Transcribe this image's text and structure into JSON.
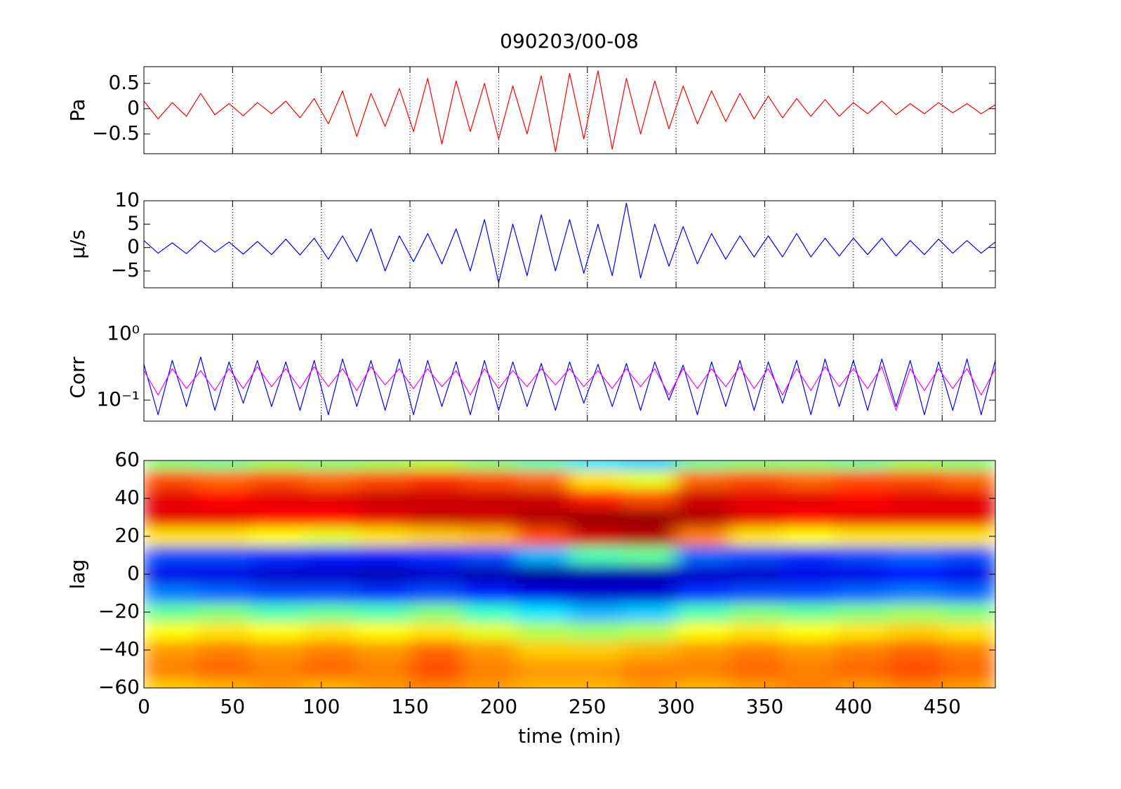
{
  "chart_data": [
    {
      "type": "line",
      "title": "090203/00-08",
      "ylabel": "Pa",
      "grid": "x",
      "xlim": [
        0,
        480
      ],
      "xticks": [
        0,
        50,
        100,
        150,
        200,
        250,
        300,
        350,
        400,
        450
      ],
      "ylim": [
        -0.89,
        0.83
      ],
      "yticks": [
        {
          "value": -0.5,
          "label": "−0.5"
        },
        0,
        0.5
      ],
      "x": [
        0,
        8,
        16,
        24,
        32,
        40,
        48,
        56,
        64,
        72,
        80,
        88,
        96,
        104,
        112,
        120,
        128,
        136,
        144,
        152,
        160,
        168,
        176,
        184,
        192,
        200,
        208,
        216,
        224,
        232,
        240,
        248,
        256,
        264,
        272,
        280,
        288,
        296,
        304,
        312,
        320,
        328,
        336,
        344,
        352,
        360,
        368,
        376,
        384,
        392,
        400,
        408,
        416,
        424,
        432,
        440,
        448,
        456,
        464,
        472,
        480
      ],
      "series": [
        {
          "color": "#ff0000",
          "values": [
            0.15,
            -0.2,
            0.12,
            -0.15,
            0.3,
            -0.12,
            0.1,
            -0.14,
            0.12,
            -0.1,
            0.15,
            -0.18,
            0.2,
            -0.3,
            0.35,
            -0.55,
            0.3,
            -0.35,
            0.4,
            -0.45,
            0.6,
            -0.7,
            0.55,
            -0.45,
            0.5,
            -0.6,
            0.45,
            -0.5,
            0.65,
            -0.85,
            0.7,
            -0.6,
            0.75,
            -0.8,
            0.6,
            -0.5,
            0.55,
            -0.4,
            0.45,
            -0.3,
            0.35,
            -0.25,
            0.3,
            -0.2,
            0.25,
            -0.18,
            0.2,
            -0.15,
            0.18,
            -0.15,
            0.12,
            -0.1,
            0.15,
            -0.12,
            0.1,
            -0.1,
            0.12,
            -0.08,
            0.1,
            -0.1,
            0.08
          ]
        }
      ]
    },
    {
      "type": "line",
      "ylabel": "μ/s",
      "grid": "x",
      "xlim": [
        0,
        480
      ],
      "xticks": [
        0,
        50,
        100,
        150,
        200,
        250,
        300,
        350,
        400,
        450
      ],
      "ylim": [
        -8.6,
        10
      ],
      "yticks": [
        {
          "value": -5,
          "label": "−5"
        },
        0,
        5,
        10
      ],
      "x": [
        0,
        8,
        16,
        24,
        32,
        40,
        48,
        56,
        64,
        72,
        80,
        88,
        96,
        104,
        112,
        120,
        128,
        136,
        144,
        152,
        160,
        168,
        176,
        184,
        192,
        200,
        208,
        216,
        224,
        232,
        240,
        248,
        256,
        264,
        272,
        280,
        288,
        296,
        304,
        312,
        320,
        328,
        336,
        344,
        352,
        360,
        368,
        376,
        384,
        392,
        400,
        408,
        416,
        424,
        432,
        440,
        448,
        456,
        464,
        472,
        480
      ],
      "series": [
        {
          "color": "#0000ff",
          "values": [
            1.5,
            -1.2,
            1,
            -1.3,
            1.5,
            -1,
            1.2,
            -1.4,
            1.3,
            -1.5,
            1.8,
            -1.6,
            2,
            -2.5,
            2.5,
            -3,
            4,
            -5,
            2.5,
            -3,
            3,
            -3.5,
            4,
            -5,
            6,
            -7.5,
            5,
            -6,
            7,
            -5,
            6,
            -5.5,
            5,
            -6,
            9.5,
            -6.5,
            5,
            -4,
            4.5,
            -3.5,
            3,
            -2.5,
            2.5,
            -2,
            2.5,
            -2,
            3,
            -2,
            2,
            -1.8,
            2,
            -1.5,
            2,
            -1.8,
            1.5,
            -1.5,
            1.8,
            -1.2,
            1.5,
            -1.2,
            1.2
          ]
        }
      ]
    },
    {
      "type": "line",
      "ylabel": "Corr",
      "grid": "x",
      "log_y": true,
      "xlim": [
        0,
        480
      ],
      "xticks": [
        0,
        50,
        100,
        150,
        200,
        250,
        300,
        350,
        400,
        450
      ],
      "ylim": [
        0.048,
        1
      ],
      "yticks": [
        {
          "value": 0.1,
          "label": "10⁻¹"
        },
        {
          "value": 1,
          "label": "10⁰"
        }
      ],
      "x": [
        0,
        8,
        16,
        24,
        32,
        40,
        48,
        56,
        64,
        72,
        80,
        88,
        96,
        104,
        112,
        120,
        128,
        136,
        144,
        152,
        160,
        168,
        176,
        184,
        192,
        200,
        208,
        216,
        224,
        232,
        240,
        248,
        256,
        264,
        272,
        280,
        288,
        296,
        304,
        312,
        320,
        328,
        336,
        344,
        352,
        360,
        368,
        376,
        384,
        392,
        400,
        408,
        416,
        424,
        432,
        440,
        448,
        456,
        464,
        472,
        480
      ],
      "series": [
        {
          "color": "#0000ff",
          "values": [
            0.35,
            0.06,
            0.4,
            0.08,
            0.45,
            0.07,
            0.38,
            0.09,
            0.4,
            0.08,
            0.38,
            0.07,
            0.4,
            0.06,
            0.42,
            0.08,
            0.4,
            0.07,
            0.42,
            0.06,
            0.4,
            0.08,
            0.38,
            0.06,
            0.4,
            0.07,
            0.38,
            0.08,
            0.36,
            0.07,
            0.38,
            0.09,
            0.35,
            0.08,
            0.36,
            0.07,
            0.38,
            0.1,
            0.34,
            0.06,
            0.38,
            0.08,
            0.4,
            0.07,
            0.38,
            0.09,
            0.4,
            0.06,
            0.42,
            0.08,
            0.4,
            0.07,
            0.42,
            0.08,
            0.4,
            0.06,
            0.38,
            0.07,
            0.42,
            0.06,
            0.4
          ]
        },
        {
          "color": "#ff00ff",
          "values": [
            0.28,
            0.12,
            0.3,
            0.15,
            0.28,
            0.14,
            0.3,
            0.15,
            0.32,
            0.16,
            0.3,
            0.15,
            0.32,
            0.16,
            0.3,
            0.14,
            0.32,
            0.17,
            0.3,
            0.15,
            0.3,
            0.16,
            0.28,
            0.12,
            0.3,
            0.15,
            0.28,
            0.16,
            0.3,
            0.17,
            0.3,
            0.16,
            0.28,
            0.15,
            0.3,
            0.16,
            0.3,
            0.12,
            0.3,
            0.15,
            0.3,
            0.16,
            0.32,
            0.15,
            0.3,
            0.12,
            0.3,
            0.14,
            0.32,
            0.16,
            0.3,
            0.15,
            0.32,
            0.07,
            0.3,
            0.14,
            0.3,
            0.15,
            0.3,
            0.12,
            0.3
          ]
        }
      ]
    },
    {
      "type": "heatmap",
      "ylabel": "lag",
      "xlabel": "time (min)",
      "colormap": "jet",
      "clim": [
        -1,
        1
      ],
      "xlim": [
        0,
        480
      ],
      "xticks": [
        0,
        50,
        100,
        150,
        200,
        250,
        300,
        350,
        400,
        450
      ],
      "ylim": [
        -60,
        60
      ],
      "yticks": [
        {
          "value": -60,
          "label": "−60"
        },
        {
          "value": -40,
          "label": "−40"
        },
        {
          "value": -20,
          "label": "−20"
        },
        0,
        20,
        40,
        60
      ],
      "x": [
        15,
        45,
        75,
        105,
        135,
        165,
        195,
        225,
        255,
        285,
        315,
        345,
        375,
        405,
        435,
        465
      ],
      "y": [
        -60,
        -50,
        -40,
        -30,
        -20,
        -10,
        0,
        10,
        20,
        30,
        40,
        50,
        60
      ],
      "z": [
        [
          0.35,
          0.4,
          0.45,
          0.4,
          0.45,
          0.5,
          0.45,
          0.4,
          0.4,
          0.45,
          0.4,
          0.45,
          0.5,
          0.45,
          0.5,
          0.45
        ],
        [
          0.5,
          0.55,
          0.5,
          0.55,
          0.5,
          0.6,
          0.5,
          0.45,
          0.45,
          0.5,
          0.5,
          0.55,
          0.5,
          0.55,
          0.6,
          0.55
        ],
        [
          0.45,
          0.5,
          0.45,
          0.5,
          0.45,
          0.55,
          0.45,
          0.35,
          0.35,
          0.4,
          0.45,
          0.5,
          0.45,
          0.5,
          0.55,
          0.5
        ],
        [
          0.25,
          0.3,
          0.25,
          0.3,
          0.25,
          0.3,
          0.2,
          0.1,
          0.05,
          0.1,
          0.25,
          0.3,
          0.25,
          0.3,
          0.35,
          0.3
        ],
        [
          -0.05,
          0,
          -0.1,
          -0.05,
          -0.1,
          0,
          -0.15,
          -0.3,
          -0.4,
          -0.35,
          -0.1,
          0,
          -0.05,
          0,
          0.05,
          0
        ],
        [
          -0.5,
          -0.55,
          -0.6,
          -0.6,
          -0.65,
          -0.6,
          -0.7,
          -0.8,
          -0.85,
          -0.85,
          -0.65,
          -0.6,
          -0.6,
          -0.55,
          -0.5,
          -0.55
        ],
        [
          -0.8,
          -0.8,
          -0.85,
          -0.85,
          -0.9,
          -0.85,
          -0.9,
          -0.95,
          -0.9,
          -0.9,
          -0.85,
          -0.85,
          -0.8,
          -0.8,
          -0.75,
          -0.8
        ],
        [
          -0.6,
          -0.6,
          -0.65,
          -0.7,
          -0.7,
          -0.65,
          -0.6,
          -0.4,
          -0.1,
          -0.05,
          -0.55,
          -0.6,
          -0.65,
          -0.6,
          -0.55,
          -0.6
        ],
        [
          0.3,
          0.3,
          0.25,
          0.2,
          0.3,
          0.35,
          0.4,
          0.6,
          0.85,
          0.9,
          0.5,
          0.3,
          0.25,
          0.3,
          0.3,
          0.3
        ],
        [
          0.8,
          0.8,
          0.75,
          0.75,
          0.8,
          0.85,
          0.85,
          0.9,
          0.95,
          0.95,
          0.9,
          0.8,
          0.75,
          0.8,
          0.8,
          0.8
        ],
        [
          0.8,
          0.75,
          0.8,
          0.8,
          0.85,
          0.85,
          0.85,
          0.85,
          0.7,
          0.6,
          0.85,
          0.8,
          0.8,
          0.75,
          0.8,
          0.8
        ],
        [
          0.6,
          0.55,
          0.6,
          0.55,
          0.6,
          0.65,
          0.6,
          0.55,
          0.3,
          0.2,
          0.55,
          0.6,
          0.55,
          0.6,
          0.6,
          0.55
        ],
        [
          0,
          -0.05,
          0.05,
          0,
          0.05,
          0.1,
          0,
          -0.1,
          -0.3,
          -0.35,
          -0.05,
          0,
          0,
          -0.05,
          0.05,
          0
        ]
      ]
    }
  ]
}
